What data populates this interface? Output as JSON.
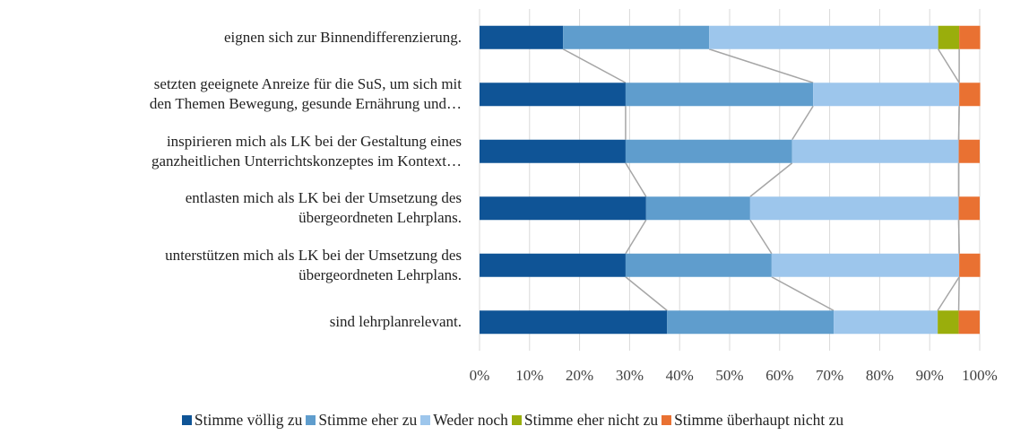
{
  "chart_data": {
    "type": "stacked_bar_horizontal",
    "categories": [
      "eignen sich zur Binnendifferenzierung.",
      "setzten geeignete Anreize für die SuS, um sich mit\nden Themen Bewegung, gesunde Ernährung und…",
      "inspirieren mich als LK bei der Gestaltung eines\nganzheitlichen Unterrichtskonzeptes im Kontext…",
      "entlasten mich als LK bei der Umsetzung des\nübergeordneten Lehrplans.",
      "unterstützen mich als LK bei der Umsetzung des\nübergeordneten Lehrplans.",
      "sind lehrplanrelevant."
    ],
    "series": [
      {
        "name": "Stimme völlig zu",
        "color": "#0f5496",
        "values": [
          16.7,
          29.2,
          29.2,
          33.3,
          29.2,
          37.5
        ]
      },
      {
        "name": "Stimme eher zu",
        "color": "#5f9dcd",
        "values": [
          29.2,
          37.5,
          33.3,
          20.8,
          29.2,
          33.3
        ]
      },
      {
        "name": "Weder noch",
        "color": "#9dc6ec",
        "values": [
          45.8,
          29.2,
          33.3,
          41.7,
          37.5,
          20.8
        ]
      },
      {
        "name": "Stimme eher nicht zu",
        "color": "#9aae0c",
        "values": [
          4.2,
          0,
          0,
          0,
          0,
          4.2
        ]
      },
      {
        "name": "Stimme überhaupt nicht zu",
        "color": "#e97132",
        "values": [
          4.2,
          4.2,
          4.2,
          4.2,
          4.2,
          4.2
        ]
      }
    ],
    "xlim": [
      0,
      100
    ],
    "xticks": [
      {
        "value": 0,
        "label": "0%"
      },
      {
        "value": 10,
        "label": "10%"
      },
      {
        "value": 20,
        "label": "20%"
      },
      {
        "value": 30,
        "label": "30%"
      },
      {
        "value": 40,
        "label": "40%"
      },
      {
        "value": 50,
        "label": "50%"
      },
      {
        "value": 60,
        "label": "60%"
      },
      {
        "value": 70,
        "label": "70%"
      },
      {
        "value": 80,
        "label": "80%"
      },
      {
        "value": 90,
        "label": "90%"
      },
      {
        "value": 100,
        "label": "100%"
      }
    ],
    "grid": true,
    "legend": "bottom",
    "series_lines": true
  }
}
